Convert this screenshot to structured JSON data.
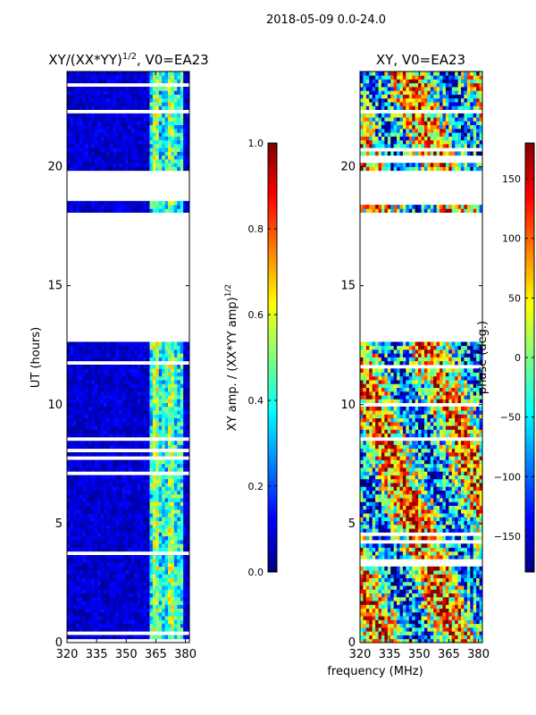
{
  "suptitle": "2018-05-09 0.0-24.0",
  "shared_xlabel": "frequency (MHz)",
  "colors": {
    "jet": [
      "#00007f",
      "#0000ff",
      "#007fff",
      "#00ffff",
      "#7fff7f",
      "#ffff00",
      "#ff7f00",
      "#ff0000",
      "#7f0000"
    ]
  },
  "chart_data": [
    {
      "type": "heatmap",
      "title_main": "XY/(XX*YY)",
      "title_exp": "1/2",
      "title_tail": ", V0=EA23",
      "xlabel": "",
      "ylabel": "UT (hours)",
      "xlim": [
        320,
        382
      ],
      "ylim": [
        0,
        24
      ],
      "xticks": [
        320,
        335,
        350,
        365,
        380
      ],
      "yticks": [
        0,
        5,
        10,
        15,
        20
      ],
      "data_gap_hours": [
        [
          12.5,
          18.0
        ],
        [
          18.5,
          19.8
        ]
      ],
      "colorbar": {
        "label_main": "XY amp. / (XX*YY amp)",
        "label_exp": "1/2",
        "range": [
          0.0,
          1.0
        ],
        "ticks": [
          "0.0",
          "0.2",
          "0.4",
          "0.6",
          "0.8",
          "1.0"
        ],
        "tick_values": [
          0.0,
          0.2,
          0.4,
          0.6,
          0.8,
          1.0
        ]
      }
    },
    {
      "type": "heatmap",
      "title_main": "XY, V0=EA23",
      "xlabel": "",
      "ylabel": "",
      "xlim": [
        320,
        382
      ],
      "ylim": [
        0,
        24
      ],
      "xticks": [
        320,
        335,
        350,
        365,
        380
      ],
      "yticks": [
        0,
        5,
        10,
        15,
        20
      ],
      "data_gap_hours": [
        [
          12.5,
          18.0
        ],
        [
          18.5,
          19.8
        ]
      ],
      "colorbar": {
        "label_main": "phase (deg.)",
        "range": [
          -180,
          180
        ],
        "ticks": [
          "−150",
          "−100",
          "−50",
          "0",
          "50",
          "100",
          "150"
        ],
        "tick_values": [
          -150,
          -100,
          -50,
          0,
          50,
          100,
          150
        ]
      }
    }
  ]
}
